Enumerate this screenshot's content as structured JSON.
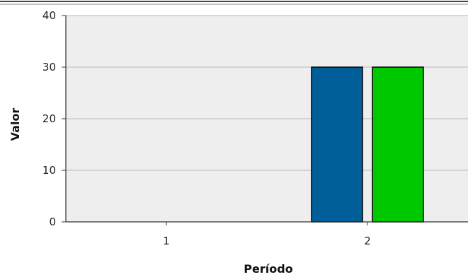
{
  "chart_data": {
    "type": "bar",
    "title": "",
    "xlabel": "Período",
    "ylabel": "Valor",
    "categories": [
      "1",
      "2"
    ],
    "series": [
      {
        "values": [
          0,
          30
        ],
        "color": "#005f99"
      },
      {
        "values": [
          0,
          30
        ],
        "color": "#00c800"
      }
    ],
    "ylim": [
      0,
      40
    ],
    "yticks": [
      "0",
      "10",
      "20",
      "30",
      "40"
    ],
    "grid": true,
    "legend": "none",
    "plot_background": "#eeeeee",
    "grid_color": "#bbbbbb"
  }
}
